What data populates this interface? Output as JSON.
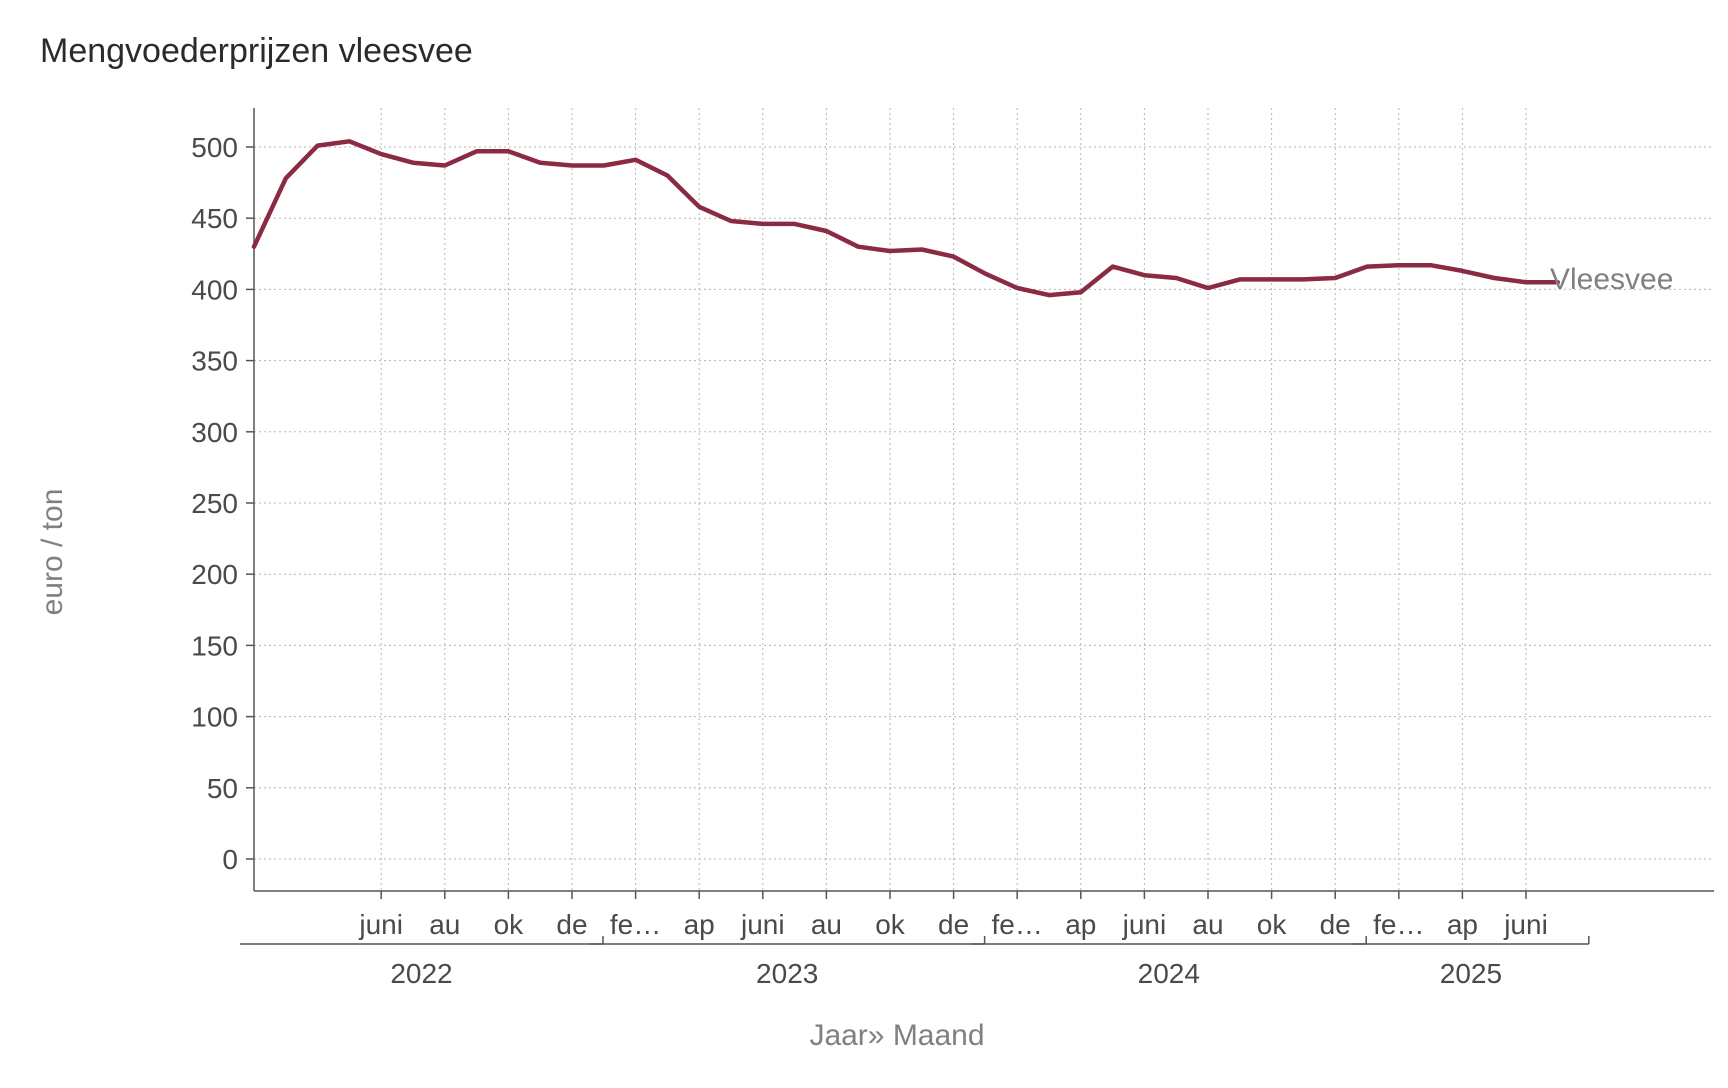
{
  "chart_data": {
    "type": "line",
    "title": "Mengvoederprijzen vleesvee",
    "xlabel": "Jaar» Maand",
    "ylabel": "euro / ton",
    "ylim": [
      0,
      500
    ],
    "yticks": [
      0,
      50,
      100,
      150,
      200,
      250,
      300,
      350,
      400,
      450,
      500
    ],
    "grid": true,
    "month_labels": [
      "juni",
      "au",
      "ok",
      "de",
      "fe…",
      "ap",
      "juni",
      "au",
      "ok",
      "de",
      "fe…",
      "ap",
      "juni",
      "au",
      "ok",
      "de",
      "fe…",
      "ap",
      "juni"
    ],
    "years": [
      "2022",
      "2023",
      "2024",
      "2025"
    ],
    "x": [
      "2022-02",
      "2022-03",
      "2022-04",
      "2022-05",
      "2022-06",
      "2022-07",
      "2022-08",
      "2022-09",
      "2022-10",
      "2022-11",
      "2022-12",
      "2023-01",
      "2023-02",
      "2023-03",
      "2023-04",
      "2023-05",
      "2023-06",
      "2023-07",
      "2023-08",
      "2023-09",
      "2023-10",
      "2023-11",
      "2023-12",
      "2024-01",
      "2024-02",
      "2024-03",
      "2024-04",
      "2024-05",
      "2024-06",
      "2024-07",
      "2024-08",
      "2024-09",
      "2024-10",
      "2024-11",
      "2024-12",
      "2025-01",
      "2025-02",
      "2025-03",
      "2025-04",
      "2025-05",
      "2025-06",
      "2025-07"
    ],
    "series": [
      {
        "name": "Vleesvee",
        "color": "#8b2a43",
        "values": [
          430,
          478,
          501,
          504,
          495,
          489,
          487,
          497,
          497,
          489,
          487,
          487,
          491,
          480,
          458,
          448,
          446,
          446,
          441,
          430,
          427,
          428,
          423,
          411,
          401,
          396,
          398,
          416,
          410,
          408,
          401,
          407,
          407,
          407,
          408,
          416,
          417,
          417,
          413,
          408,
          405,
          405
        ]
      }
    ]
  }
}
